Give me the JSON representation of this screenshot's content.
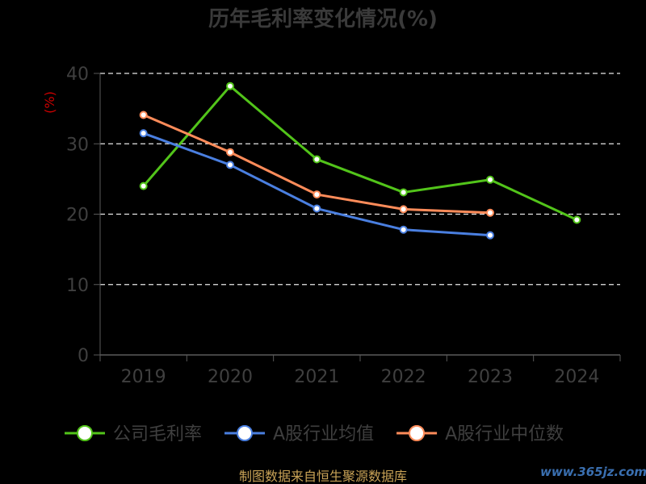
{
  "chart_data": {
    "type": "line",
    "title": "历年毛利率变化情况(%)",
    "ylabel": "(%)",
    "xlabel": "",
    "categories": [
      "2019",
      "2020",
      "2021",
      "2022",
      "2023",
      "2024"
    ],
    "ylim": [
      0,
      40
    ],
    "yticks": [
      0,
      10,
      20,
      30,
      40
    ],
    "grid": true,
    "legend_position": "bottom",
    "series": [
      {
        "name": "公司毛利率",
        "color": "#52c41a",
        "values": [
          24.0,
          38.2,
          27.8,
          23.1,
          24.9,
          19.2
        ]
      },
      {
        "name": "A股行业均值",
        "color": "#4a7fe0",
        "values": [
          31.5,
          27.0,
          20.8,
          17.8,
          17.0,
          null
        ]
      },
      {
        "name": "A股行业中位数",
        "color": "#ff8c5a",
        "values": [
          34.1,
          28.8,
          22.8,
          20.7,
          20.2,
          null
        ]
      }
    ]
  },
  "footer": {
    "source": "制图数据来自恒生聚源数据库",
    "watermark": "www.365jz.com"
  }
}
